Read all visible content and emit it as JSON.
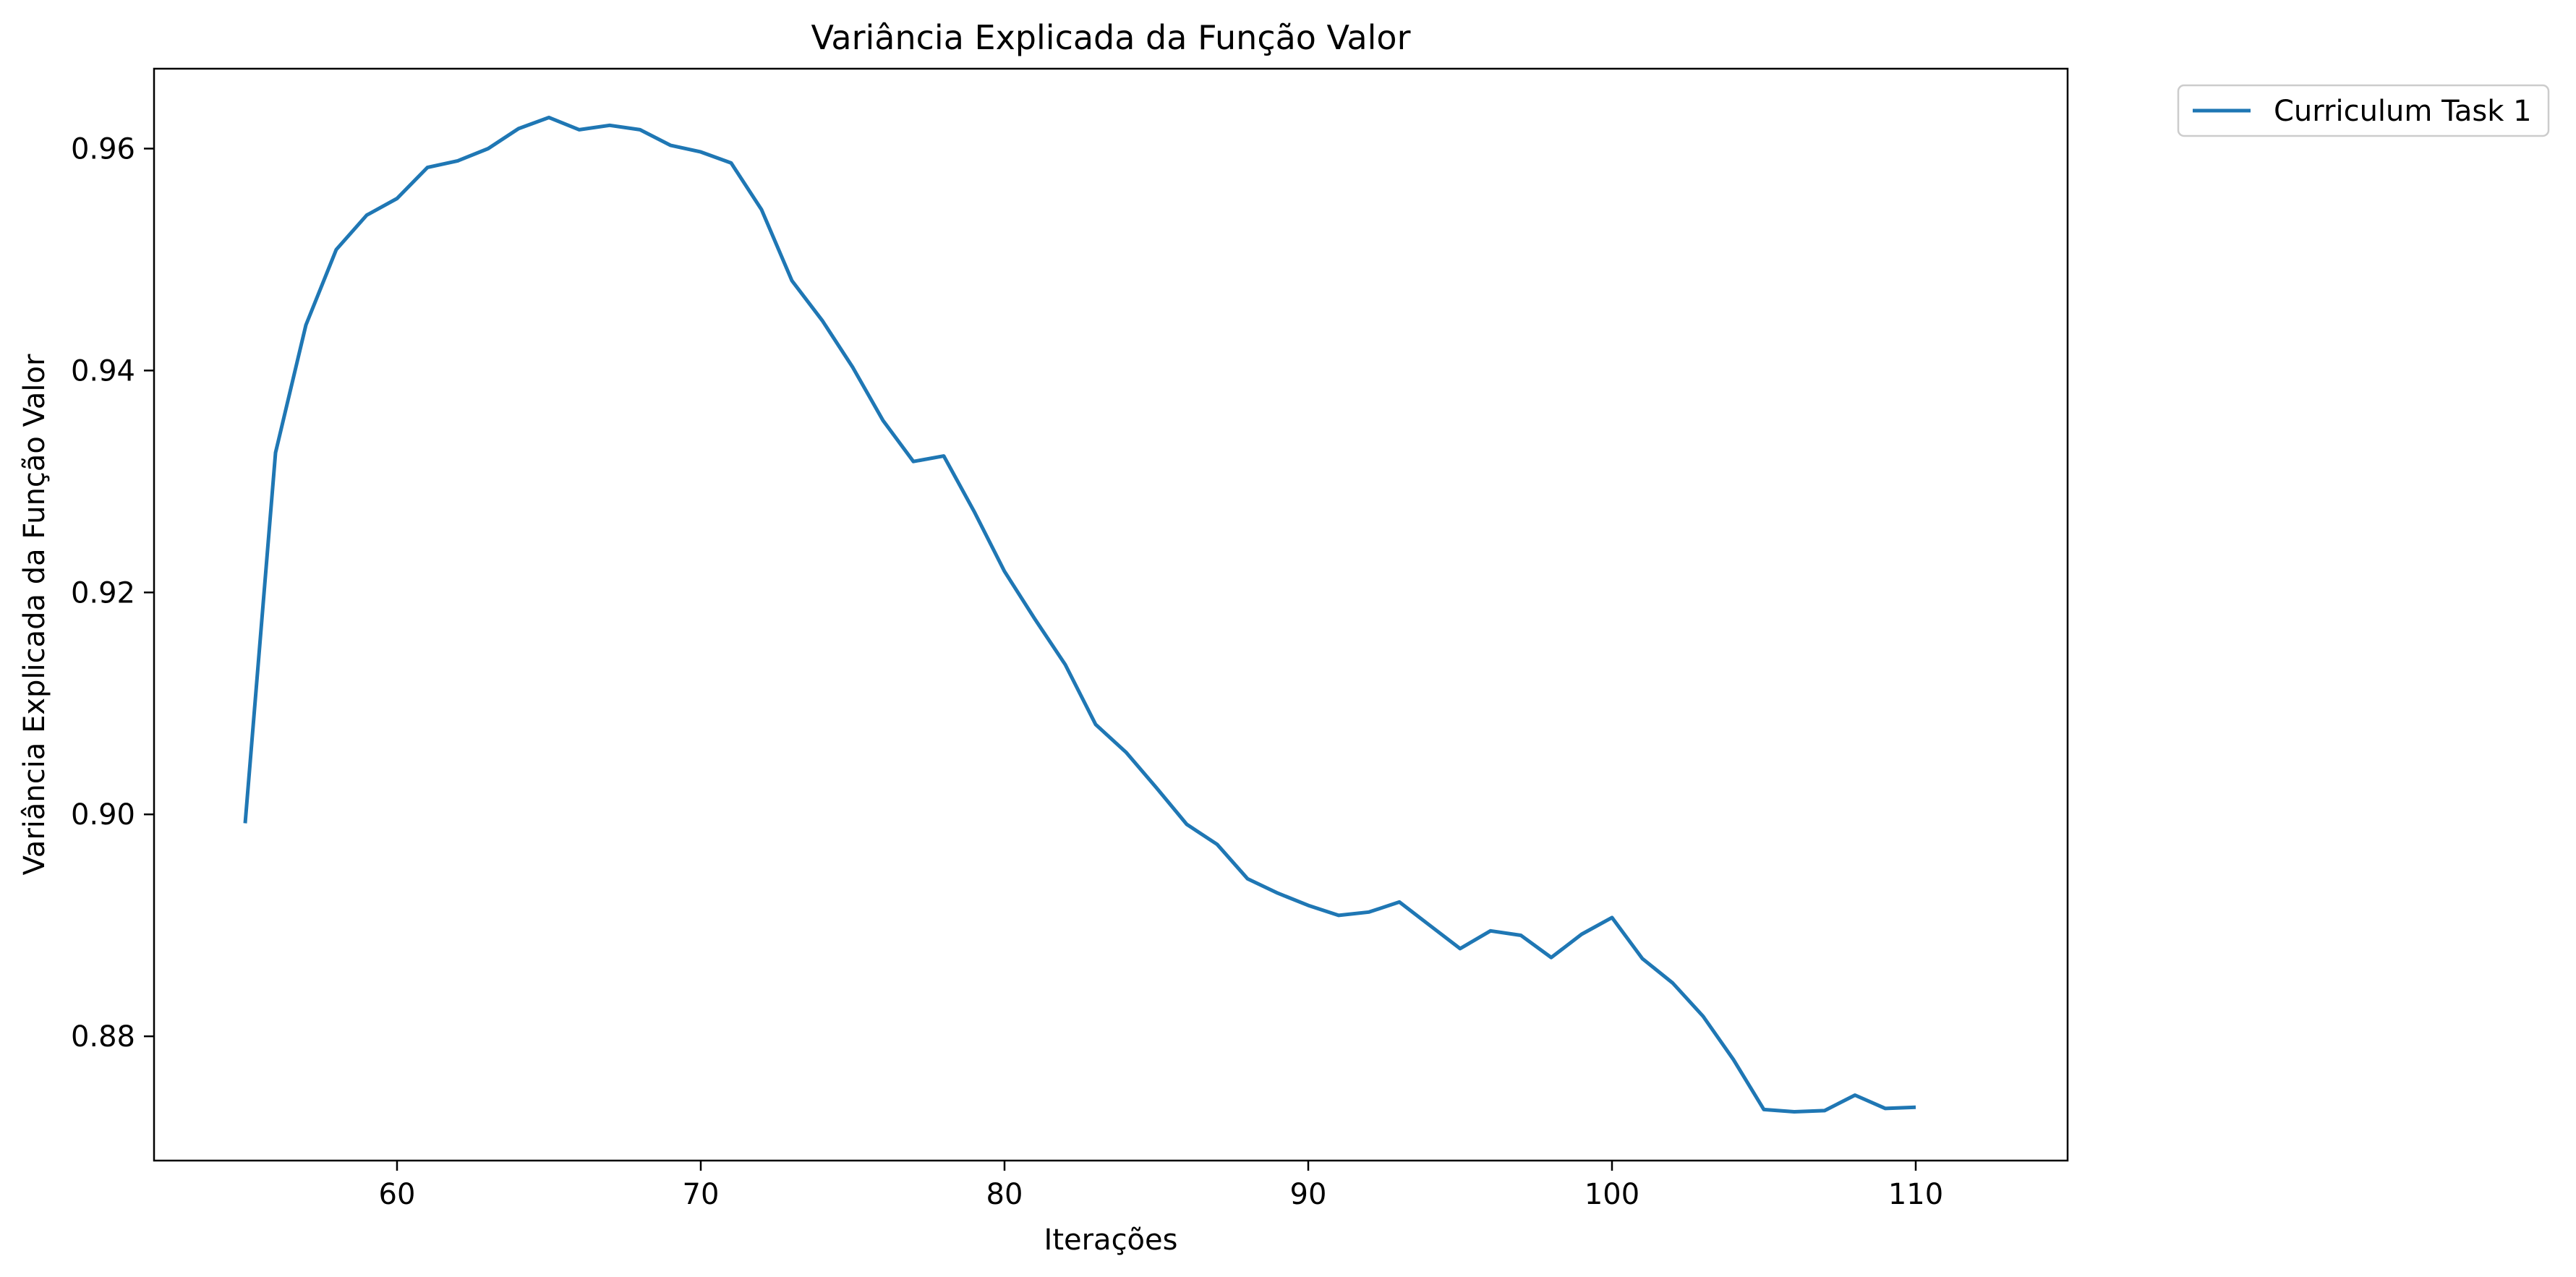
{
  "chart_data": {
    "type": "line",
    "title": "Variância Explicada da Função Valor",
    "xlabel": "Iterações",
    "ylabel": "Variância Explicada da Função Valor",
    "xlim": [
      52,
      115
    ],
    "ylim": [
      0.8688,
      0.9672
    ],
    "xticks": [
      60,
      70,
      80,
      90,
      100,
      110
    ],
    "yticks": [
      0.88,
      0.9,
      0.92,
      0.94,
      0.96
    ],
    "xtick_labels": [
      "60",
      "70",
      "80",
      "90",
      "100",
      "110"
    ],
    "ytick_labels": [
      "0.88",
      "0.90",
      "0.92",
      "0.94",
      "0.96"
    ],
    "grid": false,
    "legend_position": "outside-top-right",
    "series": [
      {
        "name": "Curriculum Task 1",
        "color": "#1f77b4",
        "x": [
          55,
          56,
          57,
          58,
          59,
          60,
          61,
          62,
          63,
          64,
          65,
          66,
          67,
          68,
          69,
          70,
          71,
          72,
          73,
          74,
          75,
          76,
          77,
          78,
          79,
          80,
          81,
          82,
          83,
          84,
          85,
          86,
          87,
          88,
          89,
          90,
          91,
          92,
          93,
          94,
          95,
          96,
          97,
          98,
          99,
          100,
          101,
          102,
          103,
          104,
          105,
          106,
          107,
          108,
          109,
          110
        ],
        "values": [
          0.8992,
          0.9326,
          0.9441,
          0.9509,
          0.954,
          0.9555,
          0.9583,
          0.9589,
          0.96,
          0.9618,
          0.9628,
          0.9617,
          0.9621,
          0.9617,
          0.9603,
          0.9597,
          0.9587,
          0.9545,
          0.9481,
          0.9445,
          0.9403,
          0.9355,
          0.9318,
          0.9323,
          0.9273,
          0.9219,
          0.9176,
          0.9135,
          0.9081,
          0.9056,
          0.9024,
          0.8991,
          0.8973,
          0.8942,
          0.8929,
          0.8918,
          0.8909,
          0.8912,
          0.8921,
          0.89,
          0.8879,
          0.8895,
          0.8891,
          0.8871,
          0.8892,
          0.8907,
          0.887,
          0.8848,
          0.8818,
          0.8779,
          0.8734,
          0.8732,
          0.8733,
          0.8747,
          0.8735,
          0.8736
        ]
      }
    ]
  }
}
